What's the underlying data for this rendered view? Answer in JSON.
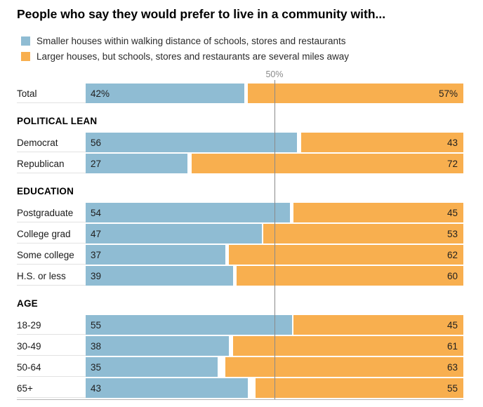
{
  "title": "People who say they would prefer to live in a community with...",
  "legend": [
    {
      "label": "Smaller houses within walking distance of schools, stores and restaurants",
      "color": "#8fbcd3"
    },
    {
      "label": "Larger houses, but schools, stores and restaurants are several miles away",
      "color": "#f8af4f"
    }
  ],
  "colors": {
    "smaller": "#8fbcd3",
    "larger": "#f8af4f",
    "gridline": "#8a8a8a"
  },
  "chart_data": {
    "type": "bar",
    "orientation": "horizontal",
    "stacked": true,
    "title": "People who say they would prefer to live in a community with...",
    "xlim": [
      0,
      100
    ],
    "gridline_value": 50,
    "gridline_label": "50%",
    "legend_position": "top",
    "series_names": [
      "Smaller houses within walking distance of schools, stores and restaurants",
      "Larger houses, but schools, stores and restaurants are several miles away"
    ],
    "categories": [
      "Total",
      "Democrat",
      "Republican",
      "Postgraduate",
      "College grad",
      "Some college",
      "H.S. or less",
      "18-29",
      "30-49",
      "50-64",
      "65+"
    ],
    "series": [
      {
        "name": "Smaller houses within walking distance of schools, stores and restaurants",
        "values": [
          42,
          56,
          27,
          54,
          47,
          37,
          39,
          55,
          38,
          35,
          43
        ]
      },
      {
        "name": "Larger houses, but schools, stores and restaurants are several miles away",
        "values": [
          57,
          43,
          72,
          45,
          53,
          62,
          60,
          45,
          61,
          63,
          55
        ]
      }
    ],
    "groups": [
      {
        "header": null,
        "rows": [
          {
            "label": "Total",
            "values": [
              42,
              57
            ],
            "display": [
              "42%",
              "57%"
            ]
          }
        ]
      },
      {
        "header": "POLITICAL LEAN",
        "rows": [
          {
            "label": "Democrat",
            "values": [
              56,
              43
            ],
            "display": [
              "56",
              "43"
            ]
          },
          {
            "label": "Republican",
            "values": [
              27,
              72
            ],
            "display": [
              "27",
              "72"
            ]
          }
        ]
      },
      {
        "header": "EDUCATION",
        "rows": [
          {
            "label": "Postgraduate",
            "values": [
              54,
              45
            ],
            "display": [
              "54",
              "45"
            ]
          },
          {
            "label": "College grad",
            "values": [
              47,
              53
            ],
            "display": [
              "47",
              "53"
            ]
          },
          {
            "label": "Some college",
            "values": [
              37,
              62
            ],
            "display": [
              "37",
              "62"
            ]
          },
          {
            "label": "H.S. or less",
            "values": [
              39,
              60
            ],
            "display": [
              "39",
              "60"
            ]
          }
        ]
      },
      {
        "header": "AGE",
        "rows": [
          {
            "label": "18-29",
            "values": [
              55,
              45
            ],
            "display": [
              "55",
              "45"
            ]
          },
          {
            "label": "30-49",
            "values": [
              38,
              61
            ],
            "display": [
              "38",
              "61"
            ]
          },
          {
            "label": "50-64",
            "values": [
              35,
              63
            ],
            "display": [
              "35",
              "63"
            ]
          },
          {
            "label": "65+",
            "values": [
              43,
              55
            ],
            "display": [
              "43",
              "55"
            ]
          }
        ]
      }
    ]
  }
}
